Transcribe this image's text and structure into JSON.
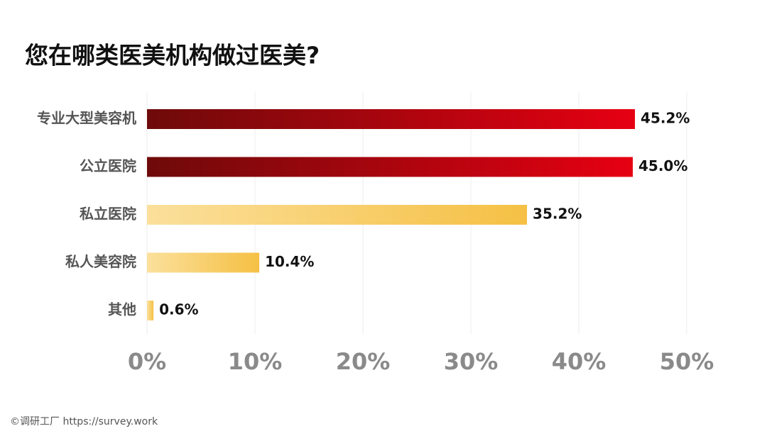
{
  "chart_data": {
    "type": "bar",
    "orientation": "horizontal",
    "title": "您在哪类医美机构做过医美?",
    "categories": [
      "专业大型美容机",
      "公立医院",
      "私立医院",
      "私人美容院",
      "其他"
    ],
    "values": [
      45.2,
      45.0,
      35.2,
      10.4,
      0.6
    ],
    "value_labels": [
      "45.2%",
      "45.0%",
      "35.2%",
      "10.4%",
      "0.6%"
    ],
    "gradients": [
      [
        "#6e0a0a",
        "#e60012"
      ],
      [
        "#6e0a0a",
        "#e60012"
      ],
      [
        "#fbe09c",
        "#f5c044"
      ],
      [
        "#fbe09c",
        "#f5c044"
      ],
      [
        "#fbe09c",
        "#f5c044"
      ]
    ],
    "xlim": [
      0,
      50
    ],
    "xticks": [
      {
        "value": 0,
        "label": "0%"
      },
      {
        "value": 10,
        "label": "10%"
      },
      {
        "value": 20,
        "label": "20%"
      },
      {
        "value": 30,
        "label": "30%"
      },
      {
        "value": 40,
        "label": "40%"
      },
      {
        "value": 50,
        "label": "50%"
      }
    ],
    "grid": true
  },
  "footer": "©调研工厂 https://survey.work"
}
